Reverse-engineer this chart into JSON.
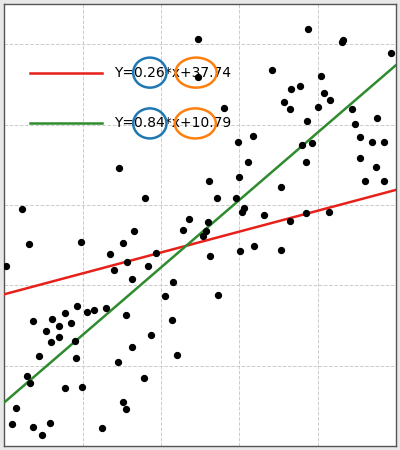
{
  "slope_red": 0.26,
  "intercept_red": 37.74,
  "slope_green": 0.84,
  "intercept_green": 10.79,
  "x_line_start": 0,
  "x_line_end": 100,
  "red_line_color": "#e8201a",
  "green_line_color": "#2e8b2e",
  "scatter_color": "black",
  "dot_size": 18,
  "line_width": 1.8,
  "label_red": "Y=0.26*x+37.74",
  "label_green": "Y=0.84*x+10.79",
  "ellipse_blue_color": "#1f77b4",
  "ellipse_orange_color": "#ff7f0e",
  "grid_color": "#cccccc",
  "grid_style": "dashed",
  "bg_color": "white",
  "fig_bg": "#e8e8e8",
  "xlim": [
    0,
    100
  ],
  "ylim": [
    0,
    110
  ],
  "font_size": 10,
  "random_seed": 42
}
